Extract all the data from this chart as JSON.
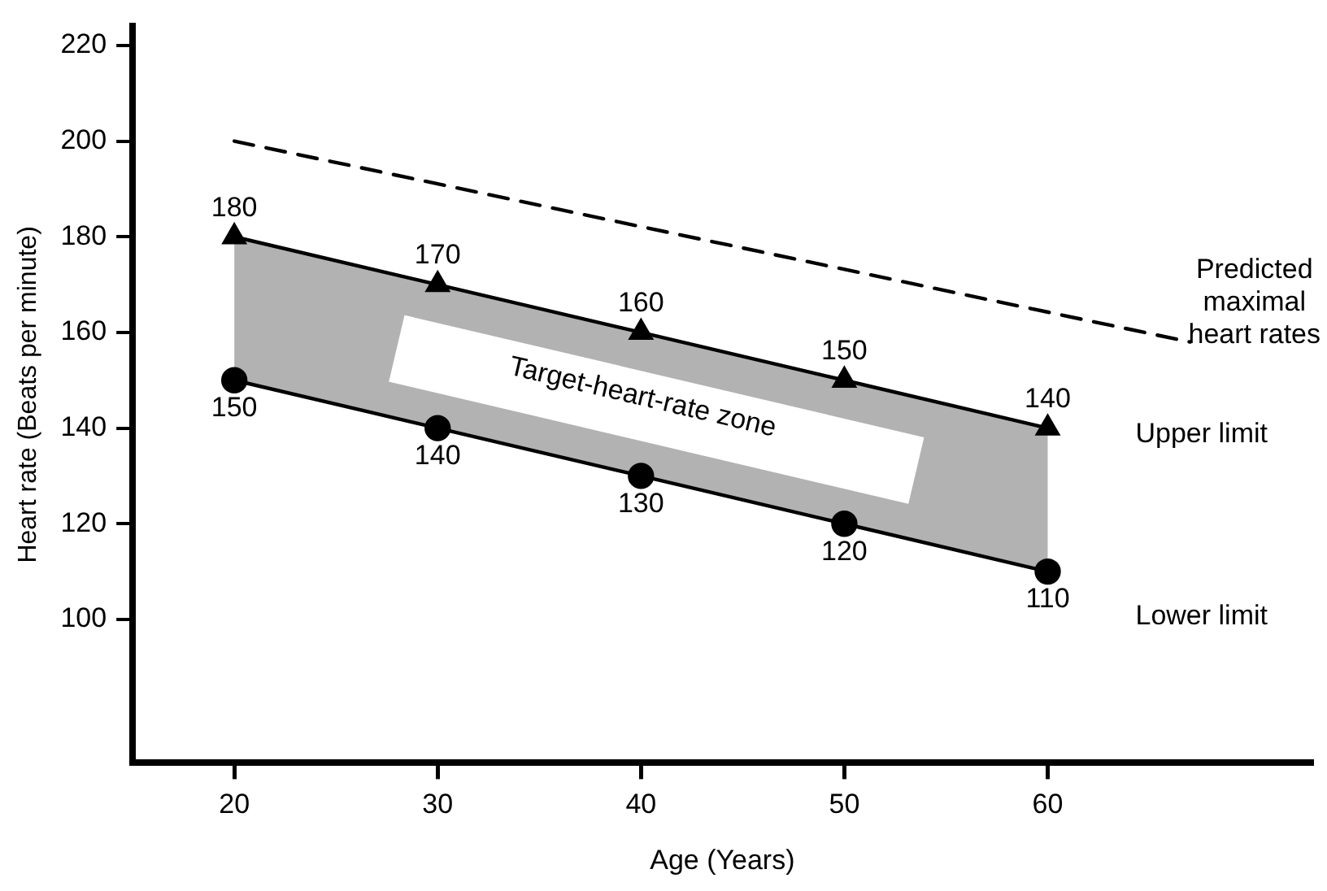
{
  "chart_data": {
    "type": "line",
    "xlabel": "Age (Years)",
    "ylabel": "Heart rate (Beats per minute)",
    "xlim": [
      15,
      73
    ],
    "xticks": [
      20,
      30,
      40,
      50,
      60
    ],
    "ylim": [
      70,
      224
    ],
    "yticks": [
      100,
      120,
      140,
      160,
      180,
      200,
      220
    ],
    "grid": false,
    "legend": false,
    "series": [
      {
        "name": "Predicted maximal heart rates",
        "color": "#000000",
        "x": [
          20,
          67
        ],
        "values": [
          200,
          158
        ],
        "line_style": "dashed",
        "marker": "none"
      },
      {
        "name": "Upper limit",
        "color": "#000000",
        "x": [
          20,
          30,
          40,
          50,
          60
        ],
        "values": [
          180,
          170,
          160,
          150,
          140
        ],
        "value_labels": [
          "180",
          "170",
          "160",
          "150",
          "140"
        ],
        "line_style": "solid",
        "marker": "triangle",
        "lower": [
          150,
          140,
          130,
          120,
          110
        ],
        "upper": [
          180,
          170,
          160,
          150,
          140
        ]
      },
      {
        "name": "Lower limit",
        "color": "#000000",
        "x": [
          20,
          30,
          40,
          50,
          60
        ],
        "values": [
          150,
          140,
          130,
          120,
          110
        ],
        "value_labels": [
          "150",
          "140",
          "130",
          "120",
          "110"
        ],
        "line_style": "solid",
        "marker": "circle"
      }
    ],
    "annotations": [
      "Target-heart-rate zone"
    ]
  }
}
